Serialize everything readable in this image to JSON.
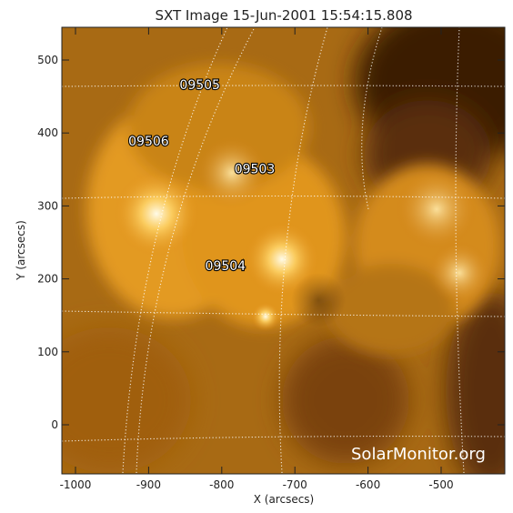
{
  "title": "SXT Image 15-Jun-2001 15:54:15.808",
  "xlabel": "X (arcsecs)",
  "ylabel": "Y (arcsecs)",
  "x_ticks": [
    "-1000",
    "-900",
    "-800",
    "-700",
    "-600",
    "-500"
  ],
  "y_ticks": [
    "0",
    "100",
    "200",
    "300",
    "400",
    "500"
  ],
  "active_regions": [
    {
      "label": "09505",
      "x": -830,
      "y": 460
    },
    {
      "label": "09506",
      "x": -900,
      "y": 383
    },
    {
      "label": "09503",
      "x": -755,
      "y": 345
    },
    {
      "label": "09504",
      "x": -795,
      "y": 212
    }
  ],
  "credit": "SolarMonitor.org",
  "colors": {
    "image_base": "#a86a14",
    "bright": "#fff4d0",
    "dark": "#2e1604",
    "grid": "#ffffff"
  }
}
